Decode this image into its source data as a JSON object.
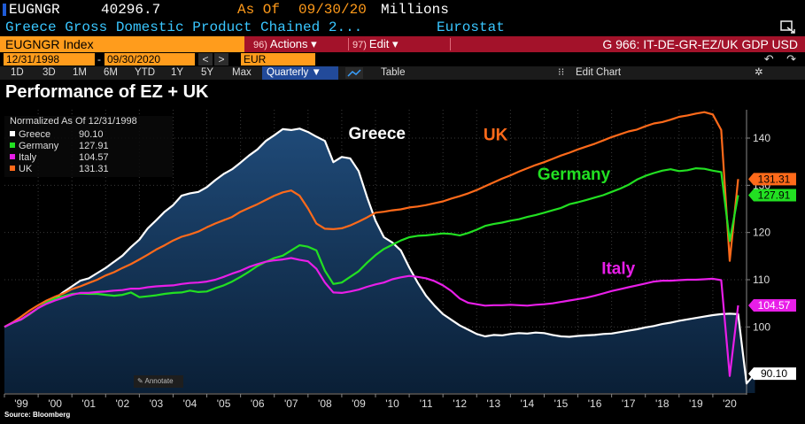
{
  "header": {
    "ticker": "EUGNGR",
    "value": "40296.7",
    "as_of_label": "As Of",
    "as_of_date": "09/30/20",
    "unit": "Millions",
    "description": "Greece Gross Domestic Product Chained 2...",
    "source_name": "Eurostat"
  },
  "command_bar": {
    "security": "EUGNGR Index",
    "actions_num": "96)",
    "actions_label": "Actions",
    "edit_num": "97)",
    "edit_label": "Edit",
    "graph_title": "G 966: IT-DE-GR-EZ/UK GDP USD"
  },
  "date_bar": {
    "start_date": "12/31/1998",
    "end_date": "09/30/2020",
    "currency": "EUR"
  },
  "toolbar": {
    "ranges": [
      "1D",
      "3D",
      "1M",
      "6M",
      "YTD",
      "1Y",
      "5Y",
      "Max"
    ],
    "frequency": "Quarterly",
    "table_label": "Table",
    "edit_chart_label": "Edit Chart"
  },
  "page_title": "Performance of EZ + UK",
  "source": "Source: Bloomberg",
  "annotate_label": "Annotate",
  "legend": {
    "header": "Normalized As Of 12/31/1998",
    "items": [
      {
        "name": "Greece",
        "value": "90.10",
        "color": "#ffffff"
      },
      {
        "name": "Germany",
        "value": "127.91",
        "color": "#22e022"
      },
      {
        "name": "Italy",
        "value": "104.57",
        "color": "#e81ee8"
      },
      {
        "name": "UK",
        "value": "131.31",
        "color": "#ff6a1a"
      }
    ]
  },
  "chart_data": {
    "type": "line",
    "x_start": 1999.0,
    "x_step": 0.25,
    "ylim": [
      86,
      146
    ],
    "xlim": [
      1999.0,
      2021.0
    ],
    "yticks": [
      100,
      110,
      120,
      130,
      140
    ],
    "xtick_labels": [
      "'99",
      "'00",
      "'01",
      "'02",
      "'03",
      "'04",
      "'05",
      "'06",
      "'07",
      "'08",
      "'09",
      "'10",
      "'11",
      "'12",
      "'13",
      "'14",
      "'15",
      "'16",
      "'17",
      "'18",
      "'19",
      "'20"
    ],
    "series": [
      {
        "name": "Greece",
        "color": "#ffffff",
        "end_label": "90.10",
        "end_label_bg": "#ffffff",
        "end_label_fg": "#000000",
        "in_chart_label": "Greece",
        "in_chart_label_color": "#ffffff",
        "values": [
          100.0,
          100.9,
          101.6,
          102.8,
          104.0,
          105.1,
          106.0,
          107.4,
          108.6,
          109.8,
          110.3,
          111.4,
          112.5,
          113.8,
          115.1,
          116.9,
          118.5,
          120.9,
          122.6,
          124.4,
          125.8,
          127.8,
          128.3,
          128.6,
          129.6,
          131.1,
          132.4,
          133.4,
          134.8,
          136.3,
          137.6,
          139.4,
          140.6,
          141.9,
          141.7,
          142.0,
          141.3,
          140.3,
          139.4,
          134.9,
          136.0,
          135.7,
          133.0,
          127.5,
          122.5,
          119.0,
          117.9,
          116.2,
          112.6,
          109.4,
          106.6,
          104.5,
          102.7,
          101.5,
          100.3,
          99.4,
          98.5,
          98.0,
          98.3,
          98.2,
          98.5,
          98.7,
          98.6,
          98.8,
          98.7,
          98.3,
          98.0,
          97.9,
          98.1,
          98.2,
          98.3,
          98.5,
          98.6,
          98.9,
          99.2,
          99.5,
          99.9,
          100.2,
          100.6,
          100.9,
          101.3,
          101.6,
          101.9,
          102.2,
          102.5,
          102.7,
          102.8,
          102.7,
          88.0,
          90.1
        ]
      },
      {
        "name": "UK",
        "color": "#ff6a1a",
        "end_label": "131.31",
        "end_label_bg": "#ff6a1a",
        "end_label_fg": "#000000",
        "in_chart_label": "UK",
        "in_chart_label_color": "#ff6a1a",
        "values": [
          100.0,
          101.0,
          102.2,
          103.5,
          104.6,
          105.6,
          106.4,
          107.1,
          108.0,
          108.6,
          109.3,
          110.0,
          110.9,
          111.6,
          112.5,
          113.3,
          114.3,
          115.3,
          116.4,
          117.3,
          118.3,
          119.1,
          119.6,
          120.2,
          121.1,
          121.9,
          122.6,
          123.3,
          124.4,
          125.2,
          126.0,
          126.9,
          127.8,
          128.5,
          128.9,
          127.8,
          125.1,
          121.9,
          120.8,
          120.7,
          120.9,
          121.5,
          122.3,
          123.2,
          124.2,
          124.4,
          124.7,
          124.9,
          125.3,
          125.5,
          125.8,
          126.2,
          126.6,
          127.2,
          127.7,
          128.3,
          129.0,
          129.8,
          130.6,
          131.4,
          132.1,
          132.9,
          133.6,
          134.3,
          134.9,
          135.6,
          136.3,
          136.9,
          137.6,
          138.2,
          138.8,
          139.5,
          140.2,
          140.8,
          141.4,
          141.8,
          142.5,
          143.1,
          143.4,
          143.9,
          144.5,
          144.8,
          145.2,
          145.5,
          145.0,
          141.7,
          114.0,
          131.31
        ]
      },
      {
        "name": "Germany",
        "color": "#22e022",
        "end_label": "127.91",
        "end_label_bg": "#22e022",
        "end_label_fg": "#000000",
        "in_chart_label": "Germany",
        "in_chart_label_color": "#22e022",
        "values": [
          100.0,
          100.9,
          101.6,
          102.7,
          104.0,
          105.2,
          106.0,
          106.5,
          107.0,
          107.1,
          107.0,
          107.0,
          106.8,
          106.6,
          106.8,
          107.3,
          106.3,
          106.5,
          106.7,
          107.0,
          107.2,
          107.3,
          107.7,
          107.4,
          107.5,
          108.2,
          108.8,
          109.6,
          110.6,
          111.7,
          112.9,
          113.8,
          114.6,
          115.1,
          116.2,
          117.3,
          117.0,
          116.2,
          111.9,
          109.1,
          109.4,
          110.6,
          111.8,
          113.6,
          115.2,
          116.5,
          117.4,
          118.3,
          119.0,
          119.3,
          119.4,
          119.6,
          119.8,
          119.7,
          119.4,
          119.9,
          120.6,
          121.4,
          121.8,
          122.1,
          122.5,
          122.8,
          123.3,
          123.7,
          124.2,
          124.7,
          125.2,
          126.0,
          126.4,
          126.9,
          127.4,
          127.9,
          128.6,
          129.3,
          130.1,
          131.2,
          132.0,
          132.6,
          133.1,
          133.4,
          133.0,
          133.2,
          133.6,
          133.5,
          133.1,
          132.8,
          118.2,
          127.91
        ]
      },
      {
        "name": "Italy",
        "color": "#e81ee8",
        "end_label": "104.57",
        "end_label_bg": "#e81ee8",
        "end_label_fg": "#ffffff",
        "in_chart_label": "Italy",
        "in_chart_label_color": "#e81ee8",
        "values": [
          100.0,
          100.9,
          101.6,
          102.8,
          104.0,
          104.9,
          105.6,
          106.2,
          106.8,
          107.2,
          107.2,
          107.4,
          107.5,
          107.7,
          107.8,
          108.1,
          108.1,
          108.4,
          108.6,
          108.7,
          108.8,
          109.1,
          109.3,
          109.4,
          109.6,
          110.0,
          110.6,
          111.3,
          111.9,
          112.7,
          113.3,
          113.8,
          114.1,
          114.3,
          114.6,
          114.2,
          113.9,
          112.3,
          109.4,
          107.3,
          107.2,
          107.5,
          107.9,
          108.5,
          109.0,
          109.4,
          110.1,
          110.5,
          110.8,
          110.6,
          110.3,
          109.7,
          108.8,
          107.6,
          106.0,
          105.1,
          104.8,
          104.5,
          104.6,
          104.6,
          104.7,
          104.6,
          104.5,
          104.7,
          104.8,
          105.0,
          105.3,
          105.6,
          105.9,
          106.2,
          106.6,
          107.1,
          107.6,
          108.0,
          108.4,
          108.8,
          109.2,
          109.6,
          109.8,
          109.8,
          109.9,
          110.0,
          110.0,
          110.1,
          110.2,
          109.9,
          89.6,
          104.57
        ]
      }
    ]
  }
}
